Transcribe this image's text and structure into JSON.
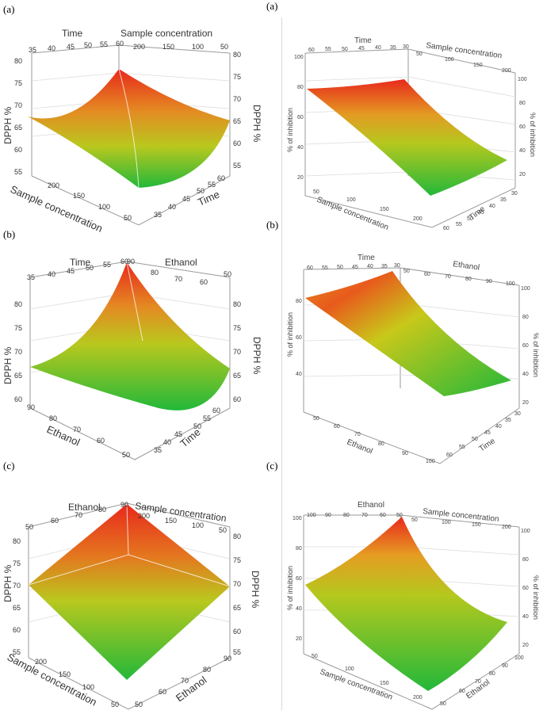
{
  "panel_labels": {
    "left_a": "(a)",
    "right_a": "(a)",
    "left_b": "(b)",
    "right_b": "(b)",
    "left_c": "(c)",
    "right_c": "(c)"
  },
  "colors": {
    "high": "#e8291c",
    "mid": "#c8c81a",
    "low": "#22b83a"
  },
  "left_a": {
    "xlabel_top": "Time",
    "ylabel_top": "Sample concentration",
    "zlabel_left": "DPPH %",
    "zlabel_right": "DPPH %",
    "xlabel_bottom": "Sample concentration",
    "ylabel_bottom": "Time",
    "time_ticks_top": [
      "35",
      "40",
      "45",
      "50",
      "55",
      "60"
    ],
    "conc_ticks_top": [
      "200",
      "150",
      "100",
      "50"
    ],
    "z_ticks_left": [
      "80",
      "75",
      "70",
      "65",
      "60",
      "55"
    ],
    "z_ticks_right": [
      "80",
      "75",
      "70",
      "65",
      "60",
      "55"
    ],
    "conc_ticks_bottom": [
      "200",
      "150",
      "100",
      "50"
    ],
    "time_ticks_bottom": [
      "60",
      "55",
      "50",
      "45",
      "40",
      "35"
    ]
  },
  "right_a": {
    "xlabel_top": "Time",
    "ylabel_top": "Sample concentration",
    "zlabel_left": "% of inhibition",
    "zlabel_right": "% of inhibition",
    "xlabel_bottom": "Sample concentration",
    "ylabel_bottom": "Time",
    "time_ticks_top": [
      "60",
      "55",
      "50",
      "45",
      "40",
      "35",
      "30"
    ],
    "conc_ticks_top": [
      "50",
      "100",
      "150",
      "200"
    ],
    "z_ticks_left": [
      "100",
      "80",
      "60",
      "40",
      "20"
    ],
    "z_ticks_right": [
      "100",
      "80",
      "60",
      "40",
      "20"
    ],
    "conc_ticks_bottom": [
      "50",
      "100",
      "150",
      "200"
    ],
    "time_ticks_bottom": [
      "30",
      "35",
      "40",
      "45",
      "50",
      "55",
      "60"
    ]
  },
  "left_b": {
    "xlabel_top": "Time",
    "ylabel_top": "Ethanol",
    "zlabel_left": "DPPH %",
    "zlabel_right": "DPPH %",
    "xlabel_bottom": "Ethanol",
    "ylabel_bottom": "Time",
    "time_ticks_top": [
      "35",
      "40",
      "45",
      "50",
      "55",
      "60"
    ],
    "eth_ticks_top": [
      "90",
      "80",
      "70",
      "60",
      "50"
    ],
    "z_ticks_left": [
      "80",
      "75",
      "70",
      "65",
      "60"
    ],
    "z_ticks_right": [
      "80",
      "75",
      "70",
      "65",
      "60"
    ],
    "eth_ticks_bottom": [
      "90",
      "80",
      "70",
      "60",
      "50"
    ],
    "time_ticks_bottom": [
      "60",
      "55",
      "50",
      "45",
      "40",
      "35"
    ]
  },
  "right_b": {
    "xlabel_top": "Time",
    "ylabel_top": "Ethanol",
    "zlabel_left": "% of inhibition",
    "zlabel_right": "% of inhibition",
    "xlabel_bottom": "Ethanol",
    "ylabel_bottom": "Time",
    "time_ticks_top": [
      "60",
      "55",
      "50",
      "45",
      "40",
      "35",
      "30"
    ],
    "eth_ticks_top": [
      "50",
      "60",
      "70",
      "80",
      "90",
      "100"
    ],
    "z_ticks_left": [
      "80",
      "60",
      "40"
    ],
    "z_ticks_right": [
      "100",
      "80",
      "60",
      "40",
      "20"
    ],
    "eth_ticks_bottom": [
      "50",
      "60",
      "70",
      "80",
      "90",
      "100"
    ],
    "time_ticks_bottom": [
      "30",
      "35",
      "40",
      "45",
      "50",
      "55",
      "60"
    ]
  },
  "left_c": {
    "xlabel_top": "Ethanol",
    "ylabel_top": "Sample concentration",
    "zlabel_left": "DPPH %",
    "zlabel_right": "DPPH %",
    "xlabel_bottom": "Sample concentration",
    "ylabel_bottom": "Ethanol",
    "eth_ticks_top": [
      "50",
      "60",
      "70",
      "80",
      "90"
    ],
    "conc_ticks_top": [
      "200",
      "150",
      "100",
      "50"
    ],
    "z_ticks_left": [
      "80",
      "75",
      "70",
      "65",
      "60",
      "55"
    ],
    "z_ticks_right": [
      "80",
      "75",
      "70",
      "65",
      "60",
      "55"
    ],
    "conc_ticks_bottom": [
      "200",
      "150",
      "100",
      "50"
    ],
    "eth_ticks_bottom": [
      "90",
      "80",
      "70",
      "60",
      "50"
    ]
  },
  "right_c": {
    "xlabel_top": "Ethanol",
    "ylabel_top": "Sample concentration",
    "zlabel_left": "% of inhibition",
    "zlabel_right": "% of inhibition",
    "xlabel_bottom": "Sample concentration",
    "ylabel_bottom": "Ethanol",
    "eth_ticks_top": [
      "100",
      "90",
      "80",
      "70",
      "60",
      "50"
    ],
    "conc_ticks_top": [
      "50",
      "100",
      "150",
      "200"
    ],
    "z_ticks_left": [
      "100",
      "80",
      "60",
      "40",
      "20"
    ],
    "z_ticks_right": [
      "100",
      "80",
      "60",
      "40",
      "20"
    ],
    "conc_ticks_bottom": [
      "50",
      "100",
      "150",
      "200"
    ],
    "eth_ticks_bottom": [
      "100",
      "90",
      "80",
      "70",
      "60",
      "50"
    ]
  }
}
